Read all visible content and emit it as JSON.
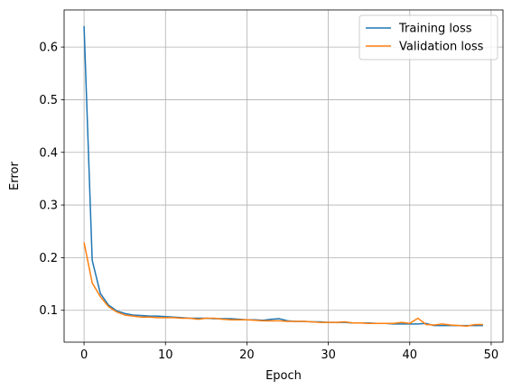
{
  "chart_data": {
    "type": "line",
    "title": "",
    "xlabel": "Epoch",
    "ylabel": "Error",
    "xlim": [
      -2.45,
      51.45
    ],
    "ylim": [
      0.0395,
      0.6705
    ],
    "x_ticks": [
      0,
      10,
      20,
      30,
      40,
      50
    ],
    "y_ticks": [
      0.1,
      0.2,
      0.3,
      0.4,
      0.5,
      0.6
    ],
    "grid": true,
    "legend_position": "top-right",
    "x": [
      0,
      1,
      2,
      3,
      4,
      5,
      6,
      7,
      8,
      9,
      10,
      11,
      12,
      13,
      14,
      15,
      16,
      17,
      18,
      19,
      20,
      21,
      22,
      23,
      24,
      25,
      26,
      27,
      28,
      29,
      30,
      31,
      32,
      33,
      34,
      35,
      36,
      37,
      38,
      39,
      40,
      41,
      42,
      43,
      44,
      45,
      46,
      47,
      48,
      49
    ],
    "series": [
      {
        "name": "Training loss",
        "color": "#1f77b4",
        "values": [
          0.64,
          0.195,
          0.132,
          0.11,
          0.099,
          0.094,
          0.091,
          0.09,
          0.089,
          0.089,
          0.088,
          0.087,
          0.086,
          0.085,
          0.085,
          0.085,
          0.084,
          0.084,
          0.084,
          0.083,
          0.082,
          0.082,
          0.081,
          0.083,
          0.084,
          0.08,
          0.079,
          0.079,
          0.078,
          0.078,
          0.077,
          0.077,
          0.077,
          0.076,
          0.076,
          0.076,
          0.075,
          0.075,
          0.074,
          0.074,
          0.074,
          0.074,
          0.075,
          0.071,
          0.071,
          0.071,
          0.071,
          0.071,
          0.071,
          0.071
        ]
      },
      {
        "name": "Validation loss",
        "color": "#ff7f0e",
        "values": [
          0.229,
          0.152,
          0.126,
          0.107,
          0.097,
          0.091,
          0.089,
          0.087,
          0.087,
          0.086,
          0.086,
          0.086,
          0.085,
          0.085,
          0.083,
          0.085,
          0.085,
          0.083,
          0.082,
          0.082,
          0.082,
          0.081,
          0.08,
          0.08,
          0.08,
          0.079,
          0.079,
          0.079,
          0.078,
          0.077,
          0.077,
          0.077,
          0.078,
          0.076,
          0.076,
          0.075,
          0.075,
          0.075,
          0.075,
          0.077,
          0.075,
          0.085,
          0.073,
          0.072,
          0.074,
          0.072,
          0.071,
          0.07,
          0.073,
          0.073
        ]
      }
    ]
  }
}
